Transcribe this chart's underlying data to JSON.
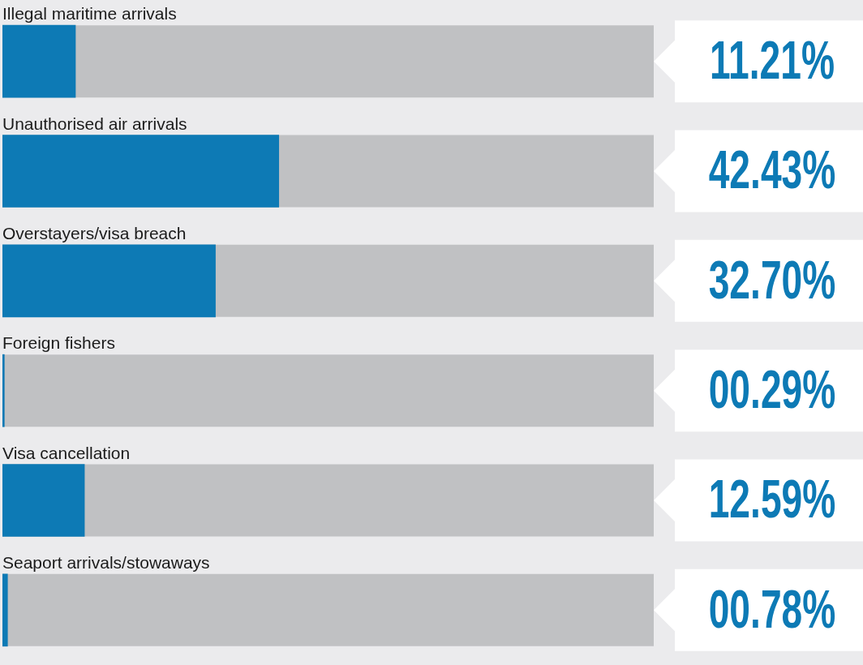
{
  "chart_data": {
    "type": "bar",
    "orientation": "horizontal",
    "categories": [
      "Illegal maritime arrivals",
      "Unauthorised air arrivals",
      "Overstayers/visa breach",
      "Foreign fishers",
      "Visa cancellation",
      "Seaport arrivals/stowaways"
    ],
    "values": [
      11.21,
      42.43,
      32.7,
      0.29,
      12.59,
      0.78
    ],
    "value_labels": [
      "11.21%",
      "42.43%",
      "32.70%",
      "00.29%",
      "12.59%",
      "00.78%"
    ],
    "color": "#0d7ab5",
    "xlim": [
      0,
      100
    ],
    "tick_labels": "y",
    "grid": false,
    "legend": false
  }
}
